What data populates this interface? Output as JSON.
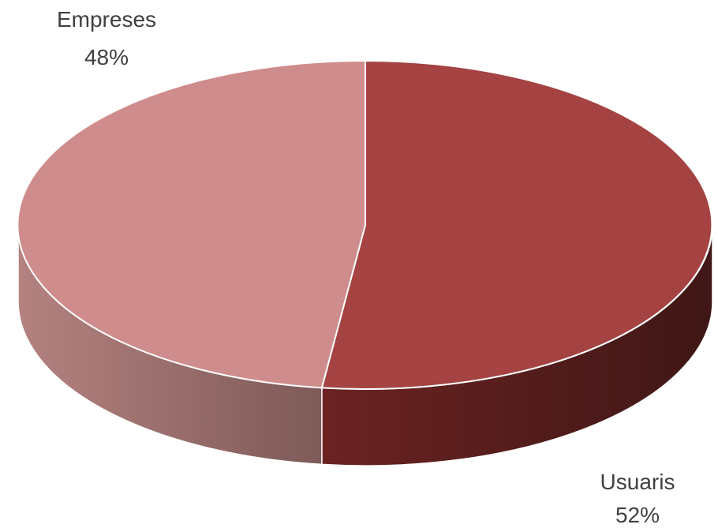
{
  "chart_data": {
    "type": "pie",
    "style": "3d",
    "slices": [
      {
        "name": "Usuaris",
        "value": 52,
        "percent_label": "52%",
        "color": "#A44342",
        "side_light": "#6B2322",
        "side_dark": "#3F1716"
      },
      {
        "name": "Empreses",
        "value": 48,
        "percent_label": "48%",
        "color": "#CF8C8C",
        "side_light": "#B48280",
        "side_dark": "#7E5A58"
      }
    ],
    "legend": "none",
    "data_labels": "category-and-percent"
  }
}
